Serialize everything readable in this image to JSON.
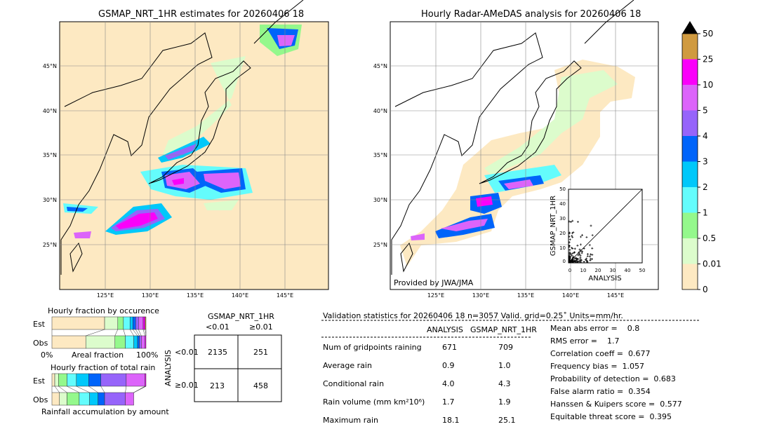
{
  "chart_data": [
    {
      "type": "heatmap",
      "title": "GSMAP_NRT_1HR estimates for 20260406 18",
      "lat_ticks": [
        "45°N",
        "40°N",
        "35°N",
        "30°N",
        "25°N"
      ],
      "lon_ticks": [
        "125°E",
        "130°E",
        "135°E",
        "140°E",
        "145°E"
      ]
    },
    {
      "type": "heatmap",
      "title": "Hourly Radar-AMeDAS analysis for 20260406 18",
      "lat_ticks": [
        "45°N",
        "40°N",
        "35°N",
        "30°N",
        "25°N"
      ],
      "lon_ticks": [
        "125°E",
        "130°E",
        "135°E",
        "140°E",
        "145°E"
      ],
      "credit": "Provided by JWA/JMA",
      "inset": {
        "type": "scatter",
        "xlabel": "ANALYSIS",
        "ylabel": "GSMAP_NRT_1HR",
        "xlim": [
          0,
          50
        ],
        "ylim": [
          0,
          50
        ],
        "ticks": [
          "0",
          "10",
          "20",
          "30",
          "40",
          "50"
        ]
      }
    },
    {
      "type": "colorbar",
      "levels": [
        "0",
        "0.01",
        "0.5",
        "1",
        "2",
        "3",
        "4",
        "5",
        "10",
        "25",
        "50"
      ],
      "colors": [
        "#fde9c2",
        "#dcfccc",
        "#94f88c",
        "#64fcfc",
        "#00c8fa",
        "#0064fa",
        "#9664fa",
        "#dc64fa",
        "#fa00fa",
        "#d09a40"
      ]
    },
    {
      "type": "bar",
      "title": "Hourly fraction by occurence",
      "categories": [
        "Est",
        "Obs"
      ],
      "xlabel": "Areal fraction",
      "xmin_label": "0%",
      "xmax_label": "100%",
      "series": {
        "Est": [
          0.56,
          0.14,
          0.06,
          0.07,
          0.03,
          0.03,
          0.03,
          0.05,
          0.02,
          0.01
        ],
        "Obs": [
          0.36,
          0.31,
          0.11,
          0.09,
          0.04,
          0.02,
          0.02,
          0.04,
          0.01,
          0.0
        ]
      }
    },
    {
      "type": "bar",
      "title": "Hourly fraction of total rain",
      "categories": [
        "Est",
        "Obs"
      ],
      "xlabel": "Rainfall accumulation by amount",
      "series": {
        "Est": [
          0.03,
          0.04,
          0.09,
          0.1,
          0.13,
          0.13,
          0.27,
          0.2,
          0.01,
          0.0
        ],
        "Obs": [
          0.08,
          0.08,
          0.13,
          0.11,
          0.09,
          0.07,
          0.22,
          0.09,
          0,
          0
        ]
      }
    },
    {
      "type": "table",
      "title": "GSMAP_NRT_1HR",
      "col_labels": [
        "<0.01",
        "≥0.01"
      ],
      "row_title": "ANALYSIS",
      "row_labels": [
        "<0.01",
        "≥0.01"
      ],
      "cells": [
        [
          "2135",
          "251"
        ],
        [
          "213",
          "458"
        ]
      ]
    }
  ],
  "stats": {
    "header": "Validation statistics for 20260406 18  n=3057 Valid. grid=0.25˚ Units=mm/hr.",
    "col1": "ANALYSIS",
    "col2": "GSMAP_NRT_1HR",
    "rows": [
      {
        "label": "Num of gridpoints raining",
        "a": "671",
        "g": "709"
      },
      {
        "label": "Average rain",
        "a": "0.9",
        "g": "1.0"
      },
      {
        "label": "Conditional rain",
        "a": "4.0",
        "g": "4.3"
      },
      {
        "label": "Rain volume (mm km²10⁶)",
        "a": "1.7",
        "g": "1.9"
      },
      {
        "label": "Maximum rain",
        "a": "18.1",
        "g": "25.1"
      }
    ],
    "scores": [
      "Mean abs error =    0.8",
      "RMS error =    1.7",
      "Correlation coeff =  0.677",
      "Frequency bias =  1.057",
      "Probability of detection =  0.683",
      "False alarm ratio =  0.354",
      "Hanssen & Kuipers score =  0.577",
      "Equitable threat score =  0.395"
    ]
  }
}
